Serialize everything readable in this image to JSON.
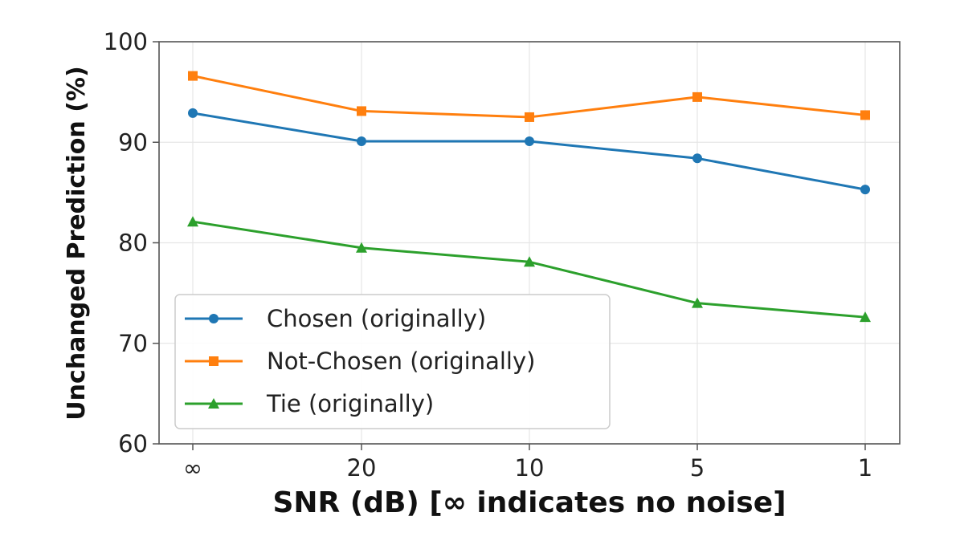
{
  "chart_data": {
    "type": "line",
    "title": "",
    "xlabel": "SNR (dB) [∞ indicates no noise]",
    "ylabel": "Unchanged Prediction (%)",
    "categories": [
      "∞",
      "20",
      "10",
      "5",
      "1"
    ],
    "ylim": [
      60,
      100
    ],
    "yticks": [
      60,
      70,
      80,
      90,
      100
    ],
    "grid": true,
    "legend_position": "bottom-left",
    "series": [
      {
        "name": "Chosen (originally)",
        "values": [
          92.9,
          90.1,
          90.1,
          88.4,
          85.3
        ],
        "color": "#1f77b4",
        "marker": "circle"
      },
      {
        "name": "Not-Chosen (originally)",
        "values": [
          96.6,
          93.1,
          92.5,
          94.5,
          92.7
        ],
        "color": "#ff7f0e",
        "marker": "square"
      },
      {
        "name": "Tie (originally)",
        "values": [
          82.1,
          79.5,
          78.1,
          74.0,
          72.6
        ],
        "color": "#2ca02c",
        "marker": "triangle"
      }
    ]
  }
}
